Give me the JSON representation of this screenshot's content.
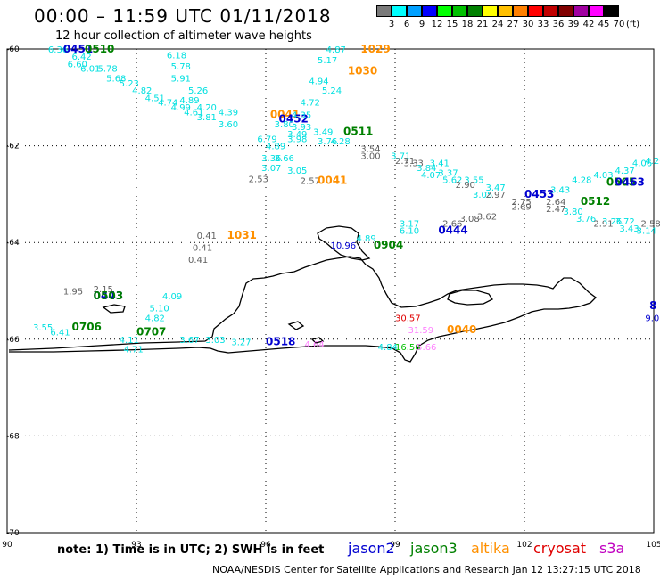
{
  "header": {
    "title": "00:00 – 11:59 UTC 01/11/2018",
    "subtitle": "12 hour collection of altimeter wave heights"
  },
  "colorbar": {
    "labels": [
      "3",
      "6",
      "9",
      "12",
      "15",
      "18",
      "21",
      "24",
      "27",
      "30",
      "33",
      "36",
      "39",
      "42",
      "45",
      "70"
    ],
    "colors": [
      "#7a7a7a",
      "#00ffff",
      "#00a0ff",
      "#0000ff",
      "#00ff00",
      "#00c000",
      "#008000",
      "#ffff00",
      "#ffc000",
      "#ff8000",
      "#ff0000",
      "#c00000",
      "#800000",
      "#a000a0",
      "#ff00ff",
      "#000000"
    ],
    "unit": "(ft)"
  },
  "axes": {
    "lat_labels": [
      "-60",
      "-62",
      "-64",
      "-66",
      "-68",
      "-70"
    ],
    "lon_labels": [
      "90",
      "93",
      "96",
      "99",
      "102",
      "105"
    ]
  },
  "observations": [
    {
      "text": "6.36",
      "color": "#00e0e0",
      "lon": 90.95,
      "lat": -60.0
    },
    {
      "text": "0451",
      "color": "#0000d0",
      "lon": 91.3,
      "lat": -60.0
    },
    {
      "text": "0510",
      "color": "#008000",
      "lon": 91.8,
      "lat": -60.0
    },
    {
      "text": "6.42",
      "color": "#00e0e0",
      "lon": 91.5,
      "lat": -60.15
    },
    {
      "text": "6.60",
      "color": "#00e0e0",
      "lon": 91.4,
      "lat": -60.3
    },
    {
      "text": "6.01",
      "color": "#00e0e0",
      "lon": 91.7,
      "lat": -60.4
    },
    {
      "text": "5.78",
      "color": "#00e0e0",
      "lon": 92.1,
      "lat": -60.4
    },
    {
      "text": "5.68",
      "color": "#00e0e0",
      "lon": 92.3,
      "lat": -60.6
    },
    {
      "text": "5.23",
      "color": "#00e0e0",
      "lon": 92.6,
      "lat": -60.7
    },
    {
      "text": "4.82",
      "color": "#00e0e0",
      "lon": 92.9,
      "lat": -60.85
    },
    {
      "text": "4.51",
      "color": "#00e0e0",
      "lon": 93.2,
      "lat": -61.0
    },
    {
      "text": "4.74",
      "color": "#00e0e0",
      "lon": 93.5,
      "lat": -61.1
    },
    {
      "text": "4.99",
      "color": "#00e0e0",
      "lon": 93.8,
      "lat": -61.2
    },
    {
      "text": "4.61",
      "color": "#00e0e0",
      "lon": 94.1,
      "lat": -61.3
    },
    {
      "text": "3.81",
      "color": "#00e0e0",
      "lon": 94.4,
      "lat": -61.4
    },
    {
      "text": "6.18",
      "color": "#00e0e0",
      "lon": 93.7,
      "lat": -60.12
    },
    {
      "text": "5.78",
      "color": "#00e0e0",
      "lon": 93.8,
      "lat": -60.35
    },
    {
      "text": "5.91",
      "color": "#00e0e0",
      "lon": 93.8,
      "lat": -60.6
    },
    {
      "text": "5.26",
      "color": "#00e0e0",
      "lon": 94.2,
      "lat": -60.85
    },
    {
      "text": "4.89",
      "color": "#00e0e0",
      "lon": 94.0,
      "lat": -61.05
    },
    {
      "text": "4.20",
      "color": "#00e0e0",
      "lon": 94.4,
      "lat": -61.2
    },
    {
      "text": "4.39",
      "color": "#00e0e0",
      "lon": 94.9,
      "lat": -61.3
    },
    {
      "text": "3.60",
      "color": "#00e0e0",
      "lon": 94.9,
      "lat": -61.55
    },
    {
      "text": "0041",
      "color": "#ff9000",
      "lon": 96.1,
      "lat": -61.35
    },
    {
      "text": "0452",
      "color": "#0000d0",
      "lon": 96.3,
      "lat": -61.45
    },
    {
      "text": "4.87",
      "color": "#00e0e0",
      "lon": 97.4,
      "lat": -60.0
    },
    {
      "text": "1029",
      "color": "#ff9000",
      "lon": 98.2,
      "lat": -60.0
    },
    {
      "text": "5.17",
      "color": "#00e0e0",
      "lon": 97.2,
      "lat": -60.22
    },
    {
      "text": "1030",
      "color": "#ff9000",
      "lon": 97.9,
      "lat": -60.45
    },
    {
      "text": "4.94",
      "color": "#00e0e0",
      "lon": 97.0,
      "lat": -60.65
    },
    {
      "text": "5.24",
      "color": "#00e0e0",
      "lon": 97.3,
      "lat": -60.85
    },
    {
      "text": "4.72",
      "color": "#00e0e0",
      "lon": 96.8,
      "lat": -61.1
    },
    {
      "text": "4.35",
      "color": "#00e0e0",
      "lon": 96.6,
      "lat": -61.35
    },
    {
      "text": "3.93",
      "color": "#00e0e0",
      "lon": 96.6,
      "lat": -61.6
    },
    {
      "text": "3.80",
      "color": "#00e0e0",
      "lon": 96.2,
      "lat": -61.55
    },
    {
      "text": "3.49",
      "color": "#00e0e0",
      "lon": 96.5,
      "lat": -61.75
    },
    {
      "text": "3.98",
      "color": "#00e0e0",
      "lon": 96.5,
      "lat": -61.85
    },
    {
      "text": "3.49",
      "color": "#00e0e0",
      "lon": 97.1,
      "lat": -61.7
    },
    {
      "text": "4.28",
      "color": "#00e0e0",
      "lon": 97.5,
      "lat": -61.9
    },
    {
      "text": "3.76",
      "color": "#00e0e0",
      "lon": 97.2,
      "lat": -61.9
    },
    {
      "text": "0511",
      "color": "#008000",
      "lon": 97.8,
      "lat": -61.7
    },
    {
      "text": "6.79",
      "color": "#00e0e0",
      "lon": 95.8,
      "lat": -61.85
    },
    {
      "text": "4.89",
      "color": "#00e0e0",
      "lon": 96.0,
      "lat": -62.0
    },
    {
      "text": "3.36",
      "color": "#00e0e0",
      "lon": 95.9,
      "lat": -62.25
    },
    {
      "text": "3.66",
      "color": "#00e0e0",
      "lon": 96.2,
      "lat": -62.25
    },
    {
      "text": "3.07",
      "color": "#00e0e0",
      "lon": 95.9,
      "lat": -62.45
    },
    {
      "text": "3.05",
      "color": "#00e0e0",
      "lon": 96.5,
      "lat": -62.5
    },
    {
      "text": "2.53",
      "color": "#606060",
      "lon": 95.6,
      "lat": -62.68
    },
    {
      "text": "2.57",
      "color": "#606060",
      "lon": 96.8,
      "lat": -62.72
    },
    {
      "text": "0041",
      "color": "#ff9000",
      "lon": 97.2,
      "lat": -62.72
    },
    {
      "text": "3.54",
      "color": "#606060",
      "lon": 98.2,
      "lat": -62.05
    },
    {
      "text": "3.00",
      "color": "#606060",
      "lon": 98.2,
      "lat": -62.2
    },
    {
      "text": "2.71",
      "color": "#606060",
      "lon": 99.0,
      "lat": -62.3
    },
    {
      "text": "3.33",
      "color": "#606060",
      "lon": 99.2,
      "lat": -62.35
    },
    {
      "text": "3.71",
      "color": "#00e0e0",
      "lon": 98.9,
      "lat": -62.2
    },
    {
      "text": "3.41",
      "color": "#00e0e0",
      "lon": 99.8,
      "lat": -62.35
    },
    {
      "text": "3.84",
      "color": "#00e0e0",
      "lon": 99.5,
      "lat": -62.45
    },
    {
      "text": "3.37",
      "color": "#00e0e0",
      "lon": 100.0,
      "lat": -62.55
    },
    {
      "text": "4.07",
      "color": "#00e0e0",
      "lon": 99.6,
      "lat": -62.6
    },
    {
      "text": "5.62",
      "color": "#00e0e0",
      "lon": 100.1,
      "lat": -62.7
    },
    {
      "text": "3.55",
      "color": "#00e0e0",
      "lon": 100.6,
      "lat": -62.7
    },
    {
      "text": "2.90",
      "color": "#606060",
      "lon": 100.4,
      "lat": -62.8
    },
    {
      "text": "3.47",
      "color": "#00e0e0",
      "lon": 101.1,
      "lat": -62.85
    },
    {
      "text": "3.05",
      "color": "#00e0e0",
      "lon": 100.8,
      "lat": -63.0
    },
    {
      "text": "2.97",
      "color": "#606060",
      "lon": 101.1,
      "lat": -63.0
    },
    {
      "text": "2.75",
      "color": "#606060",
      "lon": 101.7,
      "lat": -63.15
    },
    {
      "text": "2.69",
      "color": "#606060",
      "lon": 101.7,
      "lat": -63.25
    },
    {
      "text": "0453",
      "color": "#0000d0",
      "lon": 102.0,
      "lat": -63.0
    },
    {
      "text": "3.43",
      "color": "#00e0e0",
      "lon": 102.6,
      "lat": -62.9
    },
    {
      "text": "2.64",
      "color": "#606060",
      "lon": 102.5,
      "lat": -63.15
    },
    {
      "text": "2.47",
      "color": "#606060",
      "lon": 102.5,
      "lat": -63.3
    },
    {
      "text": "0512",
      "color": "#008000",
      "lon": 103.3,
      "lat": -63.15
    },
    {
      "text": "3.80",
      "color": "#00e0e0",
      "lon": 102.9,
      "lat": -63.35
    },
    {
      "text": "3.76",
      "color": "#00e0e0",
      "lon": 103.2,
      "lat": -63.5
    },
    {
      "text": "2.91",
      "color": "#606060",
      "lon": 103.6,
      "lat": -63.6
    },
    {
      "text": "3.26",
      "color": "#00e0e0",
      "lon": 103.8,
      "lat": -63.55
    },
    {
      "text": "3.72",
      "color": "#00e0e0",
      "lon": 104.1,
      "lat": -63.55
    },
    {
      "text": "3.43",
      "color": "#00e0e0",
      "lon": 104.2,
      "lat": -63.7
    },
    {
      "text": "2.58",
      "color": "#606060",
      "lon": 104.7,
      "lat": -63.6
    },
    {
      "text": "3.14",
      "color": "#00e0e0",
      "lon": 104.6,
      "lat": -63.75
    },
    {
      "text": "4.28",
      "color": "#00e0e0",
      "lon": 103.1,
      "lat": -62.7
    },
    {
      "text": "4.03",
      "color": "#00e0e0",
      "lon": 103.6,
      "lat": -62.6
    },
    {
      "text": "4.37",
      "color": "#00e0e0",
      "lon": 104.1,
      "lat": -62.5
    },
    {
      "text": "0505",
      "color": "#008000",
      "lon": 103.9,
      "lat": -62.75
    },
    {
      "text": "0463",
      "color": "#0000d0",
      "lon": 104.1,
      "lat": -62.75
    },
    {
      "text": "4.06",
      "color": "#00e0e0",
      "lon": 104.5,
      "lat": -62.35
    },
    {
      "text": "4.20",
      "color": "#00e0e0",
      "lon": 104.8,
      "lat": -62.3
    },
    {
      "text": "2.66",
      "color": "#606060",
      "lon": 100.1,
      "lat": -63.6
    },
    {
      "text": "3.08",
      "color": "#606060",
      "lon": 100.5,
      "lat": -63.5
    },
    {
      "text": "3.62",
      "color": "#606060",
      "lon": 100.9,
      "lat": -63.45
    },
    {
      "text": "3.17",
      "color": "#00e0e0",
      "lon": 99.1,
      "lat": -63.6
    },
    {
      "text": "6.10",
      "color": "#00e0e0",
      "lon": 99.1,
      "lat": -63.75
    },
    {
      "text": "0444",
      "color": "#0000d0",
      "lon": 100.0,
      "lat": -63.75
    },
    {
      "text": "4.89",
      "color": "#00e0e0",
      "lon": 98.1,
      "lat": -63.9
    },
    {
      "text": "10.96",
      "color": "#0000d0",
      "lon": 97.5,
      "lat": -64.05
    },
    {
      "text": "0904",
      "color": "#008000",
      "lon": 98.5,
      "lat": -64.05
    },
    {
      "text": "0.41",
      "color": "#606060",
      "lon": 94.4,
      "lat": -63.85
    },
    {
      "text": "1031",
      "color": "#ff9000",
      "lon": 95.1,
      "lat": -63.85
    },
    {
      "text": "0.41",
      "color": "#606060",
      "lon": 94.3,
      "lat": -64.1
    },
    {
      "text": "0.41",
      "color": "#606060",
      "lon": 94.2,
      "lat": -64.35
    },
    {
      "text": "1.95",
      "color": "#606060",
      "lon": 91.3,
      "lat": -65.0
    },
    {
      "text": "2.15",
      "color": "#606060",
      "lon": 92.0,
      "lat": -64.95
    },
    {
      "text": "0443",
      "color": "#0000d0",
      "lon": 92.0,
      "lat": -65.1
    },
    {
      "text": "0503",
      "color": "#008000",
      "lon": 92.0,
      "lat": -65.1
    },
    {
      "text": "4.09",
      "color": "#00e0e0",
      "lon": 93.6,
      "lat": -65.1
    },
    {
      "text": "5.10",
      "color": "#00e0e0",
      "lon": 93.3,
      "lat": -65.35
    },
    {
      "text": "4.82",
      "color": "#00e0e0",
      "lon": 93.2,
      "lat": -65.55
    },
    {
      "text": "3.55",
      "color": "#00e0e0",
      "lon": 90.6,
      "lat": -65.75
    },
    {
      "text": "0706",
      "color": "#008000",
      "lon": 91.5,
      "lat": -65.75
    },
    {
      "text": "6.41",
      "color": "#00e0e0",
      "lon": 91.0,
      "lat": -65.85
    },
    {
      "text": "0707",
      "color": "#008000",
      "lon": 93.0,
      "lat": -65.85
    },
    {
      "text": "4.11",
      "color": "#00e0e0",
      "lon": 92.6,
      "lat": -66.0
    },
    {
      "text": "4.71",
      "color": "#00e0e0",
      "lon": 92.7,
      "lat": -66.2
    },
    {
      "text": "3.67",
      "color": "#00e0e0",
      "lon": 94.0,
      "lat": -66.0
    },
    {
      "text": "3.03",
      "color": "#00e0e0",
      "lon": 94.6,
      "lat": -66.0
    },
    {
      "text": "3.27",
      "color": "#00e0e0",
      "lon": 95.2,
      "lat": -66.05
    },
    {
      "text": "0518",
      "color": "#0000d0",
      "lon": 96.0,
      "lat": -66.05
    },
    {
      "text": "4.64",
      "color": "#ff80ff",
      "lon": 96.9,
      "lat": -66.1
    },
    {
      "text": "30.57",
      "color": "#e00000",
      "lon": 99.0,
      "lat": -65.55
    },
    {
      "text": "31.59",
      "color": "#ff80ff",
      "lon": 99.3,
      "lat": -65.8
    },
    {
      "text": "0040",
      "color": "#ff9000",
      "lon": 100.2,
      "lat": -65.8
    },
    {
      "text": "4.84",
      "color": "#00e0e0",
      "lon": 98.6,
      "lat": -66.15
    },
    {
      "text": "16.50",
      "color": "#00c000",
      "lon": 99.0,
      "lat": -66.15
    },
    {
      "text": "5.66",
      "color": "#ff80ff",
      "lon": 99.5,
      "lat": -66.15
    },
    {
      "text": "8",
      "color": "#0000d0",
      "lon": 104.9,
      "lat": -65.3
    },
    {
      "text": "9.0",
      "color": "#0000d0",
      "lon": 104.8,
      "lat": -65.55
    }
  ],
  "footer": {
    "note": "note:  1) Time is in UTC;  2) SWH is in feet",
    "satellites": [
      {
        "name": "jason2",
        "color": "#0000d0"
      },
      {
        "name": "jason3",
        "color": "#008000"
      },
      {
        "name": "altika",
        "color": "#ff9000"
      },
      {
        "name": "cryosat",
        "color": "#e00000"
      },
      {
        "name": "s3a",
        "color": "#c000c0"
      }
    ],
    "credit": "NOAA/NESDIS Center for Satellite Applications and Research    Jan 12 13:27:15 UTC 2018"
  }
}
